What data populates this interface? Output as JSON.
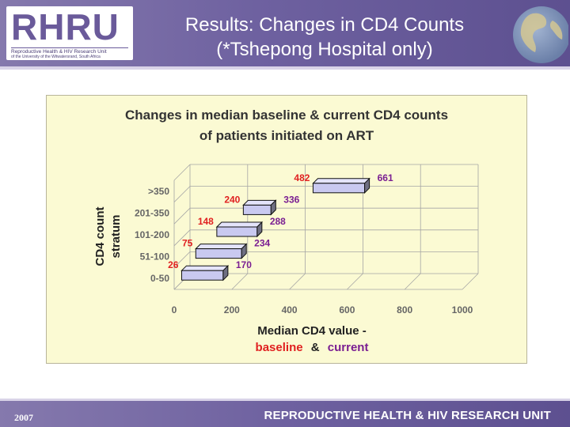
{
  "header": {
    "logo_text": "RHRU",
    "logo_subtitle": "Reproductive Health & HIV Research Unit",
    "logo_subtitle2": "of the University of the Witwatersrand, South Africa",
    "title_line1": "Results: Changes in CD4 Counts",
    "title_line2": "(*Tshepong Hospital only)"
  },
  "footer": {
    "year": "2007",
    "unit_name": "REPRODUCTIVE HEALTH & HIV RESEARCH UNIT"
  },
  "colors": {
    "header_purple": "#6e61a0",
    "panel_background": "#fbfad3",
    "bar_fill": "#c9c9f0",
    "baseline_label": "#e02020",
    "current_label": "#7a1e92"
  },
  "chart_data": {
    "type": "bar",
    "orientation": "horizontal",
    "style": "3d-floating",
    "title_line1": "Changes in median baseline & current CD4 counts",
    "title_line2": "of patients initiated on ART",
    "ylabel_line1": "CD4 count",
    "ylabel_line2": "stratum",
    "xlabel_line1": "Median CD4 value -",
    "xlabel_baseline": "baseline",
    "xlabel_amp": "&",
    "xlabel_current": "current",
    "categories": [
      "0-50",
      "51-100",
      "101-200",
      "201-350",
      ">350"
    ],
    "series": [
      {
        "name": "baseline",
        "values": [
          26,
          75,
          148,
          240,
          482
        ]
      },
      {
        "name": "current",
        "values": [
          170,
          234,
          288,
          336,
          661
        ]
      }
    ],
    "xlim": [
      0,
      1000
    ],
    "xticks": [
      0,
      200,
      400,
      600,
      800,
      1000
    ],
    "grid": true
  }
}
